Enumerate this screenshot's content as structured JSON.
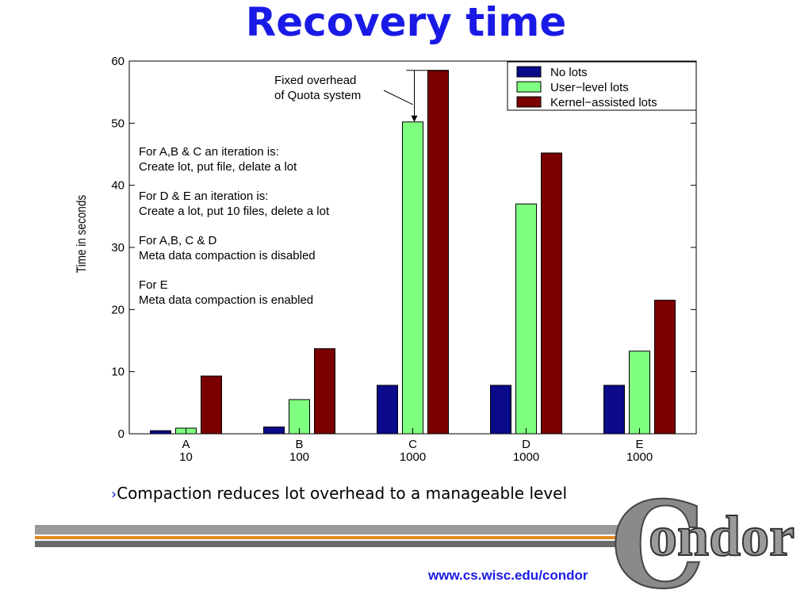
{
  "title": "Recovery time",
  "bullet": {
    "marker": "›",
    "text": "Compaction reduces lot overhead to a manageable level"
  },
  "footer_url": "www.cs.wisc.edu/condor",
  "logo_text": "Condor",
  "colors": {
    "title": "#1a1ae6",
    "no_lots": "#0a0a8a",
    "user_level": "#7fff7f",
    "kernel": "#7a0000"
  },
  "chart_data": {
    "type": "bar",
    "categories": [
      {
        "letter": "A",
        "count": "10"
      },
      {
        "letter": "B",
        "count": "100"
      },
      {
        "letter": "C",
        "count": "1000"
      },
      {
        "letter": "D",
        "count": "1000"
      },
      {
        "letter": "E",
        "count": "1000"
      }
    ],
    "series": [
      {
        "name": "No lots",
        "color": "#0a0a8a",
        "values": [
          0.5,
          1.1,
          7.8,
          7.8,
          7.8
        ]
      },
      {
        "name": "User−level lots",
        "color": "#7fff7f",
        "values": [
          0.9,
          5.5,
          50.2,
          37.0,
          13.3
        ]
      },
      {
        "name": "Kernel−assisted lots",
        "color": "#7a0000",
        "values": [
          9.3,
          13.7,
          58.5,
          45.2,
          21.5
        ]
      }
    ],
    "ylabel": "Time in seconds",
    "ylim": [
      0,
      60
    ],
    "yticks": [
      0,
      10,
      20,
      30,
      40,
      50,
      60
    ],
    "legend_position": "top-right",
    "annotation_arrow": {
      "text": [
        "Fixed overhead",
        "of Quota system"
      ],
      "from_value": 58.5,
      "to_value": 50.2,
      "category_index": 2
    },
    "notes": [
      [
        "For A,B & C an iteration is:",
        "Create lot, put file, delate a lot"
      ],
      [
        "For D & E an iteration is:",
        "Create a lot, put 10 files, delete a lot"
      ],
      [
        "For A,B, C & D",
        "Meta data compaction is disabled"
      ],
      [
        "For E",
        "Meta data compaction is enabled"
      ]
    ]
  }
}
